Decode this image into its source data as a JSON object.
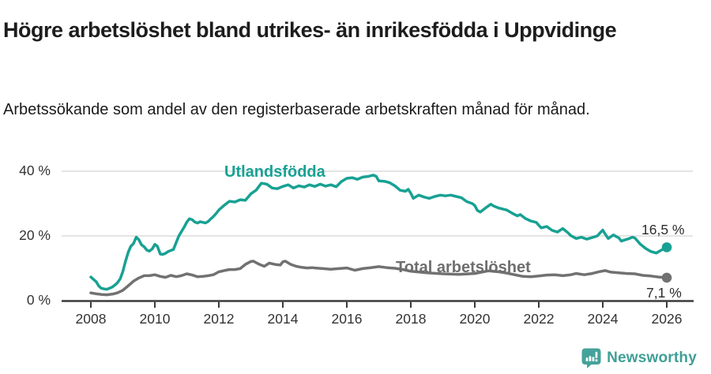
{
  "header": {
    "title": "Högre arbetslöshet bland utrikes- än inrikesfödda i Uppvidinge",
    "subtitle": "Arbetssökande som andel av den registerbaserade arbetskraften månad för månad."
  },
  "colors": {
    "foreign_born_line": "#18a193",
    "total_line": "#717171",
    "grid": "#dcdcdc",
    "axis": "#3b3b3b",
    "tick_text": "#333333",
    "brand": "#3f9f96"
  },
  "footer": {
    "brand": "Newsworthy"
  },
  "chart_data": {
    "type": "line",
    "title": "Högre arbetslöshet bland utrikes- än inrikesfödda i Uppvidinge",
    "subtitle": "Arbetssökande som andel av den registerbaserade arbetskraften månad för månad.",
    "unit": "%",
    "grid": "horizontal-only",
    "legend_position": "inline-labels",
    "x_axis": {
      "range": [
        2007.1,
        2026.9
      ],
      "ticks": [
        2008,
        2010,
        2012,
        2014,
        2016,
        2018,
        2020,
        2022,
        2024,
        2026
      ]
    },
    "y_axis": {
      "range": [
        0,
        42
      ],
      "ticks": [
        {
          "value": 40,
          "label": "40 %"
        },
        {
          "value": 20,
          "label": "20 %"
        },
        {
          "value": 0,
          "label": "0 %"
        }
      ]
    },
    "series": [
      {
        "name": "Utlandsfödda",
        "color": "#18a193",
        "end_label": "16,5 %",
        "end_value": 16.5,
        "points": [
          [
            2008.0,
            7.3
          ],
          [
            2008.08,
            6.6
          ],
          [
            2008.17,
            5.8
          ],
          [
            2008.25,
            4.5
          ],
          [
            2008.33,
            3.8
          ],
          [
            2008.42,
            3.6
          ],
          [
            2008.5,
            3.5
          ],
          [
            2008.58,
            3.8
          ],
          [
            2008.67,
            4.2
          ],
          [
            2008.75,
            4.8
          ],
          [
            2008.83,
            5.5
          ],
          [
            2008.92,
            6.8
          ],
          [
            2009.0,
            9.0
          ],
          [
            2009.08,
            12.0
          ],
          [
            2009.17,
            15.0
          ],
          [
            2009.25,
            16.8
          ],
          [
            2009.33,
            17.6
          ],
          [
            2009.42,
            19.6
          ],
          [
            2009.5,
            18.8
          ],
          [
            2009.58,
            17.3
          ],
          [
            2009.67,
            16.6
          ],
          [
            2009.75,
            15.6
          ],
          [
            2009.83,
            15.3
          ],
          [
            2009.92,
            16.0
          ],
          [
            2010.0,
            17.4
          ],
          [
            2010.08,
            16.8
          ],
          [
            2010.17,
            14.4
          ],
          [
            2010.25,
            14.3
          ],
          [
            2010.33,
            14.6
          ],
          [
            2010.42,
            15.2
          ],
          [
            2010.5,
            15.5
          ],
          [
            2010.58,
            15.8
          ],
          [
            2010.67,
            18.0
          ],
          [
            2010.75,
            20.0
          ],
          [
            2010.83,
            21.3
          ],
          [
            2010.92,
            22.8
          ],
          [
            2011.0,
            24.3
          ],
          [
            2011.08,
            25.3
          ],
          [
            2011.17,
            25.0
          ],
          [
            2011.25,
            24.3
          ],
          [
            2011.33,
            24.0
          ],
          [
            2011.42,
            24.4
          ],
          [
            2011.5,
            24.2
          ],
          [
            2011.58,
            24.0
          ],
          [
            2011.67,
            24.5
          ],
          [
            2011.75,
            25.3
          ],
          [
            2011.83,
            26.0
          ],
          [
            2011.92,
            27.0
          ],
          [
            2012.0,
            28.0
          ],
          [
            2012.17,
            29.5
          ],
          [
            2012.33,
            30.7
          ],
          [
            2012.5,
            30.5
          ],
          [
            2012.67,
            31.2
          ],
          [
            2012.83,
            31.0
          ],
          [
            2013.0,
            33.0
          ],
          [
            2013.17,
            34.2
          ],
          [
            2013.33,
            36.3
          ],
          [
            2013.5,
            36.0
          ],
          [
            2013.67,
            34.8
          ],
          [
            2013.83,
            34.6
          ],
          [
            2014.0,
            35.3
          ],
          [
            2014.17,
            35.8
          ],
          [
            2014.33,
            34.8
          ],
          [
            2014.5,
            35.5
          ],
          [
            2014.67,
            35.1
          ],
          [
            2014.83,
            35.8
          ],
          [
            2015.0,
            35.3
          ],
          [
            2015.17,
            36.0
          ],
          [
            2015.33,
            35.4
          ],
          [
            2015.5,
            35.8
          ],
          [
            2015.67,
            35.2
          ],
          [
            2015.83,
            36.8
          ],
          [
            2016.0,
            37.8
          ],
          [
            2016.17,
            38.0
          ],
          [
            2016.33,
            37.5
          ],
          [
            2016.5,
            38.2
          ],
          [
            2016.67,
            38.4
          ],
          [
            2016.83,
            38.8
          ],
          [
            2016.92,
            38.4
          ],
          [
            2017.0,
            37.0
          ],
          [
            2017.17,
            36.9
          ],
          [
            2017.33,
            36.5
          ],
          [
            2017.5,
            35.5
          ],
          [
            2017.67,
            34.1
          ],
          [
            2017.83,
            33.8
          ],
          [
            2017.92,
            34.4
          ],
          [
            2018.0,
            33.2
          ],
          [
            2018.08,
            31.6
          ],
          [
            2018.25,
            32.6
          ],
          [
            2018.42,
            32.0
          ],
          [
            2018.58,
            31.6
          ],
          [
            2018.75,
            32.2
          ],
          [
            2018.92,
            32.6
          ],
          [
            2019.08,
            32.4
          ],
          [
            2019.25,
            32.6
          ],
          [
            2019.42,
            32.2
          ],
          [
            2019.58,
            31.8
          ],
          [
            2019.75,
            30.6
          ],
          [
            2019.92,
            30.0
          ],
          [
            2020.0,
            29.4
          ],
          [
            2020.08,
            27.9
          ],
          [
            2020.17,
            27.4
          ],
          [
            2020.33,
            28.6
          ],
          [
            2020.5,
            29.8
          ],
          [
            2020.58,
            29.3
          ],
          [
            2020.75,
            28.6
          ],
          [
            2020.92,
            28.2
          ],
          [
            2021.0,
            28.0
          ],
          [
            2021.17,
            27.0
          ],
          [
            2021.33,
            26.2
          ],
          [
            2021.42,
            26.6
          ],
          [
            2021.58,
            25.4
          ],
          [
            2021.75,
            24.6
          ],
          [
            2021.92,
            24.2
          ],
          [
            2022.0,
            23.3
          ],
          [
            2022.08,
            22.5
          ],
          [
            2022.25,
            22.9
          ],
          [
            2022.42,
            21.7
          ],
          [
            2022.58,
            21.2
          ],
          [
            2022.75,
            22.3
          ],
          [
            2022.92,
            20.9
          ],
          [
            2023.0,
            20.1
          ],
          [
            2023.17,
            19.2
          ],
          [
            2023.33,
            19.6
          ],
          [
            2023.5,
            19.0
          ],
          [
            2023.67,
            19.5
          ],
          [
            2023.83,
            20.0
          ],
          [
            2023.92,
            21.0
          ],
          [
            2024.0,
            21.8
          ],
          [
            2024.08,
            20.5
          ],
          [
            2024.17,
            19.2
          ],
          [
            2024.33,
            20.3
          ],
          [
            2024.5,
            19.4
          ],
          [
            2024.58,
            18.4
          ],
          [
            2024.67,
            18.7
          ],
          [
            2024.83,
            19.2
          ],
          [
            2024.92,
            19.6
          ],
          [
            2025.0,
            19.4
          ],
          [
            2025.17,
            17.5
          ],
          [
            2025.33,
            16.2
          ],
          [
            2025.5,
            15.2
          ],
          [
            2025.67,
            14.7
          ],
          [
            2025.83,
            15.6
          ],
          [
            2026.0,
            16.5
          ]
        ]
      },
      {
        "name": "Total arbetslöshet",
        "color": "#717171",
        "end_label": "7,1 %",
        "end_value": 7.1,
        "points": [
          [
            2008.0,
            2.4
          ],
          [
            2008.17,
            2.1
          ],
          [
            2008.33,
            1.9
          ],
          [
            2008.5,
            1.8
          ],
          [
            2008.67,
            2.0
          ],
          [
            2008.83,
            2.4
          ],
          [
            2009.0,
            3.2
          ],
          [
            2009.17,
            4.6
          ],
          [
            2009.33,
            6.0
          ],
          [
            2009.5,
            7.0
          ],
          [
            2009.67,
            7.7
          ],
          [
            2009.83,
            7.7
          ],
          [
            2010.0,
            8.0
          ],
          [
            2010.17,
            7.5
          ],
          [
            2010.33,
            7.2
          ],
          [
            2010.5,
            7.8
          ],
          [
            2010.67,
            7.4
          ],
          [
            2010.83,
            7.7
          ],
          [
            2011.0,
            8.3
          ],
          [
            2011.17,
            7.9
          ],
          [
            2011.33,
            7.4
          ],
          [
            2011.5,
            7.5
          ],
          [
            2011.67,
            7.7
          ],
          [
            2011.83,
            8.0
          ],
          [
            2012.0,
            8.9
          ],
          [
            2012.17,
            9.3
          ],
          [
            2012.33,
            9.6
          ],
          [
            2012.5,
            9.6
          ],
          [
            2012.67,
            9.9
          ],
          [
            2012.83,
            11.2
          ],
          [
            2013.0,
            12.1
          ],
          [
            2013.08,
            12.2
          ],
          [
            2013.25,
            11.3
          ],
          [
            2013.42,
            10.6
          ],
          [
            2013.58,
            11.6
          ],
          [
            2013.75,
            11.2
          ],
          [
            2013.92,
            11.0
          ],
          [
            2014.0,
            12.0
          ],
          [
            2014.08,
            12.2
          ],
          [
            2014.25,
            11.2
          ],
          [
            2014.42,
            10.6
          ],
          [
            2014.58,
            10.3
          ],
          [
            2014.75,
            10.1
          ],
          [
            2014.92,
            10.2
          ],
          [
            2015.0,
            10.1
          ],
          [
            2015.25,
            9.9
          ],
          [
            2015.5,
            9.7
          ],
          [
            2015.75,
            9.9
          ],
          [
            2016.0,
            10.1
          ],
          [
            2016.25,
            9.4
          ],
          [
            2016.5,
            9.9
          ],
          [
            2016.75,
            10.2
          ],
          [
            2017.0,
            10.5
          ],
          [
            2017.25,
            10.2
          ],
          [
            2017.5,
            10.0
          ],
          [
            2017.75,
            9.6
          ],
          [
            2018.0,
            9.1
          ],
          [
            2018.5,
            8.6
          ],
          [
            2019.0,
            8.3
          ],
          [
            2019.5,
            8.1
          ],
          [
            2020.0,
            8.4
          ],
          [
            2020.42,
            9.2
          ],
          [
            2020.75,
            8.9
          ],
          [
            2021.0,
            8.5
          ],
          [
            2021.5,
            7.5
          ],
          [
            2021.75,
            7.4
          ],
          [
            2022.0,
            7.6
          ],
          [
            2022.25,
            7.9
          ],
          [
            2022.5,
            8.0
          ],
          [
            2022.75,
            7.7
          ],
          [
            2023.0,
            8.0
          ],
          [
            2023.17,
            8.4
          ],
          [
            2023.42,
            8.0
          ],
          [
            2023.67,
            8.4
          ],
          [
            2023.92,
            9.0
          ],
          [
            2024.08,
            9.3
          ],
          [
            2024.25,
            8.8
          ],
          [
            2024.5,
            8.6
          ],
          [
            2024.75,
            8.4
          ],
          [
            2025.0,
            8.3
          ],
          [
            2025.25,
            7.8
          ],
          [
            2025.5,
            7.6
          ],
          [
            2025.75,
            7.3
          ],
          [
            2026.0,
            7.1
          ]
        ]
      }
    ]
  }
}
